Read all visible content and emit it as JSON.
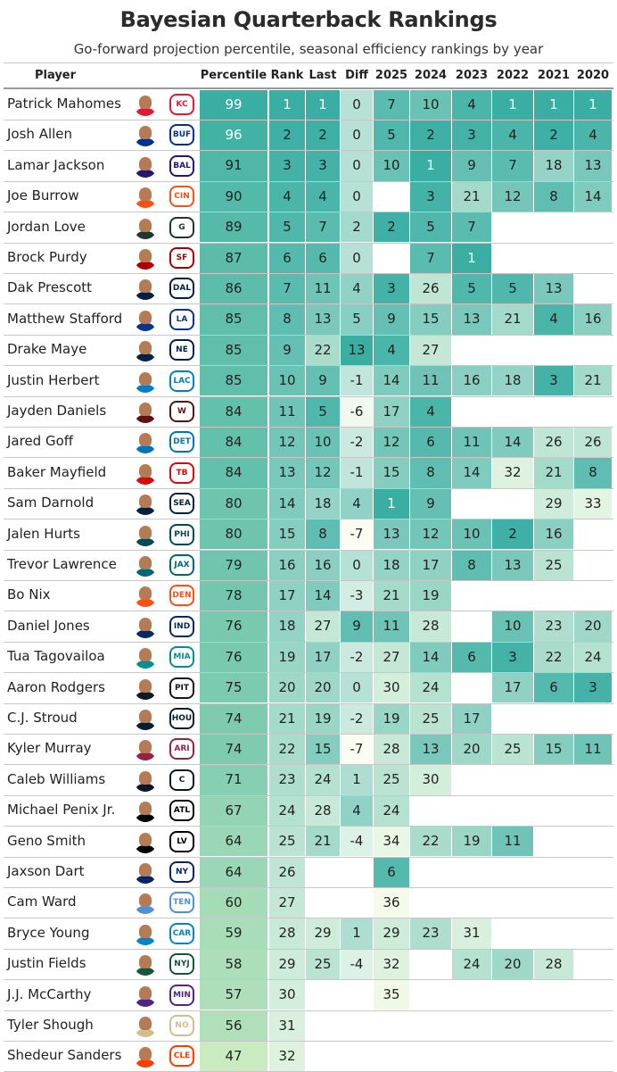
{
  "title": "Bayesian Quarterback Rankings",
  "subtitle": "Go-forward projection percentile, seasonal efficiency rankings by year",
  "chart_data": {
    "type": "table",
    "columns": [
      "Player",
      "Percentile",
      "Rank",
      "Last",
      "Diff",
      "2025",
      "2024",
      "2023",
      "2022",
      "2021",
      "2020"
    ],
    "rows": [
      {
        "player": "Patrick Mahomes",
        "team_color": "#E31837",
        "logo_text": "KC",
        "percentile": 99,
        "rank": 1,
        "last": 1,
        "diff": 0,
        "y2025": 7,
        "y2024": 10,
        "y2023": 4,
        "y2022": 1,
        "y2021": 1,
        "y2020": 1
      },
      {
        "player": "Josh Allen",
        "team_color": "#00338D",
        "logo_text": "BUF",
        "percentile": 96,
        "rank": 2,
        "last": 2,
        "diff": 0,
        "y2025": 5,
        "y2024": 2,
        "y2023": 3,
        "y2022": 4,
        "y2021": 2,
        "y2020": 4
      },
      {
        "player": "Lamar Jackson",
        "team_color": "#241773",
        "logo_text": "BAL",
        "percentile": 91,
        "rank": 3,
        "last": 3,
        "diff": 0,
        "y2025": 10,
        "y2024": 1,
        "y2023": 9,
        "y2022": 7,
        "y2021": 18,
        "y2020": 13
      },
      {
        "player": "Joe Burrow",
        "team_color": "#FB4F14",
        "logo_text": "CIN",
        "percentile": 90,
        "rank": 4,
        "last": 4,
        "diff": 0,
        "y2025": null,
        "y2024": 3,
        "y2023": 21,
        "y2022": 12,
        "y2021": 8,
        "y2020": 14
      },
      {
        "player": "Jordan Love",
        "team_color": "#203731",
        "logo_text": "G",
        "percentile": 89,
        "rank": 5,
        "last": 7,
        "diff": 2,
        "y2025": 2,
        "y2024": 5,
        "y2023": 7,
        "y2022": null,
        "y2021": null,
        "y2020": null
      },
      {
        "player": "Brock Purdy",
        "team_color": "#AA0000",
        "logo_text": "SF",
        "percentile": 87,
        "rank": 6,
        "last": 6,
        "diff": 0,
        "y2025": null,
        "y2024": 7,
        "y2023": 1,
        "y2022": null,
        "y2021": null,
        "y2020": null
      },
      {
        "player": "Dak Prescott",
        "team_color": "#041E42",
        "logo_text": "DAL",
        "percentile": 86,
        "rank": 7,
        "last": 11,
        "diff": 4,
        "y2025": 3,
        "y2024": 26,
        "y2023": 5,
        "y2022": 5,
        "y2021": 13,
        "y2020": null
      },
      {
        "player": "Matthew Stafford",
        "team_color": "#003594",
        "logo_text": "LA",
        "percentile": 85,
        "rank": 8,
        "last": 13,
        "diff": 5,
        "y2025": 9,
        "y2024": 15,
        "y2023": 13,
        "y2022": 21,
        "y2021": 4,
        "y2020": 16
      },
      {
        "player": "Drake Maye",
        "team_color": "#002244",
        "logo_text": "NE",
        "percentile": 85,
        "rank": 9,
        "last": 22,
        "diff": 13,
        "y2025": 4,
        "y2024": 27,
        "y2023": null,
        "y2022": null,
        "y2021": null,
        "y2020": null
      },
      {
        "player": "Justin Herbert",
        "team_color": "#0080C6",
        "logo_text": "LAC",
        "percentile": 85,
        "rank": 10,
        "last": 9,
        "diff": -1,
        "y2025": 14,
        "y2024": 11,
        "y2023": 16,
        "y2022": 18,
        "y2021": 3,
        "y2020": 21
      },
      {
        "player": "Jayden Daniels",
        "team_color": "#5A1414",
        "logo_text": "W",
        "percentile": 84,
        "rank": 11,
        "last": 5,
        "diff": -6,
        "y2025": 17,
        "y2024": 4,
        "y2023": null,
        "y2022": null,
        "y2021": null,
        "y2020": null
      },
      {
        "player": "Jared Goff",
        "team_color": "#0076B6",
        "logo_text": "DET",
        "percentile": 84,
        "rank": 12,
        "last": 10,
        "diff": -2,
        "y2025": 12,
        "y2024": 6,
        "y2023": 11,
        "y2022": 14,
        "y2021": 26,
        "y2020": 26
      },
      {
        "player": "Baker Mayfield",
        "team_color": "#D50A0A",
        "logo_text": "TB",
        "percentile": 84,
        "rank": 13,
        "last": 12,
        "diff": -1,
        "y2025": 15,
        "y2024": 8,
        "y2023": 14,
        "y2022": 32,
        "y2021": 21,
        "y2020": 8
      },
      {
        "player": "Sam Darnold",
        "team_color": "#002244",
        "logo_text": "SEA",
        "percentile": 80,
        "rank": 14,
        "last": 18,
        "diff": 4,
        "y2025": 1,
        "y2024": 9,
        "y2023": null,
        "y2022": null,
        "y2021": 29,
        "y2020": 33
      },
      {
        "player": "Jalen Hurts",
        "team_color": "#004C54",
        "logo_text": "PHI",
        "percentile": 80,
        "rank": 15,
        "last": 8,
        "diff": -7,
        "y2025": 13,
        "y2024": 12,
        "y2023": 10,
        "y2022": 2,
        "y2021": 16,
        "y2020": null
      },
      {
        "player": "Trevor Lawrence",
        "team_color": "#006778",
        "logo_text": "JAX",
        "percentile": 79,
        "rank": 16,
        "last": 16,
        "diff": 0,
        "y2025": 18,
        "y2024": 17,
        "y2023": 8,
        "y2022": 13,
        "y2021": 25,
        "y2020": null
      },
      {
        "player": "Bo Nix",
        "team_color": "#FB4F14",
        "logo_text": "DEN",
        "percentile": 78,
        "rank": 17,
        "last": 14,
        "diff": -3,
        "y2025": 21,
        "y2024": 19,
        "y2023": null,
        "y2022": null,
        "y2021": null,
        "y2020": null
      },
      {
        "player": "Daniel Jones",
        "team_color": "#002C5F",
        "logo_text": "IND",
        "percentile": 76,
        "rank": 18,
        "last": 27,
        "diff": 9,
        "y2025": 11,
        "y2024": 28,
        "y2023": null,
        "y2022": 10,
        "y2021": 23,
        "y2020": 20
      },
      {
        "player": "Tua Tagovailoa",
        "team_color": "#008E97",
        "logo_text": "MIA",
        "percentile": 76,
        "rank": 19,
        "last": 17,
        "diff": -2,
        "y2025": 27,
        "y2024": 14,
        "y2023": 6,
        "y2022": 3,
        "y2021": 22,
        "y2020": 24
      },
      {
        "player": "Aaron Rodgers",
        "team_color": "#101820",
        "logo_text": "PIT",
        "percentile": 75,
        "rank": 20,
        "last": 20,
        "diff": 0,
        "y2025": 30,
        "y2024": 24,
        "y2023": null,
        "y2022": 17,
        "y2021": 6,
        "y2020": 3
      },
      {
        "player": "C.J. Stroud",
        "team_color": "#03202F",
        "logo_text": "HOU",
        "percentile": 74,
        "rank": 21,
        "last": 19,
        "diff": -2,
        "y2025": 19,
        "y2024": 25,
        "y2023": 17,
        "y2022": null,
        "y2021": null,
        "y2020": null
      },
      {
        "player": "Kyler Murray",
        "team_color": "#97233F",
        "logo_text": "ARI",
        "percentile": 74,
        "rank": 22,
        "last": 15,
        "diff": -7,
        "y2025": 28,
        "y2024": 13,
        "y2023": 20,
        "y2022": 25,
        "y2021": 15,
        "y2020": 11
      },
      {
        "player": "Caleb Williams",
        "team_color": "#0B162A",
        "logo_text": "C",
        "percentile": 71,
        "rank": 23,
        "last": 24,
        "diff": 1,
        "y2025": 25,
        "y2024": 30,
        "y2023": null,
        "y2022": null,
        "y2021": null,
        "y2020": null
      },
      {
        "player": "Michael Penix Jr.",
        "team_color": "#000000",
        "logo_text": "ATL",
        "percentile": 67,
        "rank": 24,
        "last": 28,
        "diff": 4,
        "y2025": 24,
        "y2024": null,
        "y2023": null,
        "y2022": null,
        "y2021": null,
        "y2020": null
      },
      {
        "player": "Geno Smith",
        "team_color": "#000000",
        "logo_text": "LV",
        "percentile": 64,
        "rank": 25,
        "last": 21,
        "diff": -4,
        "y2025": 34,
        "y2024": 22,
        "y2023": 19,
        "y2022": 11,
        "y2021": null,
        "y2020": null
      },
      {
        "player": "Jaxson Dart",
        "team_color": "#0B2265",
        "logo_text": "NY",
        "percentile": 64,
        "rank": 26,
        "last": null,
        "diff": null,
        "y2025": 6,
        "y2024": null,
        "y2023": null,
        "y2022": null,
        "y2021": null,
        "y2020": null
      },
      {
        "player": "Cam Ward",
        "team_color": "#4B92DB",
        "logo_text": "TEN",
        "percentile": 60,
        "rank": 27,
        "last": null,
        "diff": null,
        "y2025": 36,
        "y2024": null,
        "y2023": null,
        "y2022": null,
        "y2021": null,
        "y2020": null
      },
      {
        "player": "Bryce Young",
        "team_color": "#0085CA",
        "logo_text": "CAR",
        "percentile": 59,
        "rank": 28,
        "last": 29,
        "diff": 1,
        "y2025": 29,
        "y2024": 23,
        "y2023": 31,
        "y2022": null,
        "y2021": null,
        "y2020": null
      },
      {
        "player": "Justin Fields",
        "team_color": "#125740",
        "logo_text": "NYJ",
        "percentile": 58,
        "rank": 29,
        "last": 25,
        "diff": -4,
        "y2025": 32,
        "y2024": null,
        "y2023": 24,
        "y2022": 20,
        "y2021": 28,
        "y2020": null
      },
      {
        "player": "J.J. McCarthy",
        "team_color": "#4F2683",
        "logo_text": "MIN",
        "percentile": 57,
        "rank": 30,
        "last": null,
        "diff": null,
        "y2025": 35,
        "y2024": null,
        "y2023": null,
        "y2022": null,
        "y2021": null,
        "y2020": null
      },
      {
        "player": "Tyler Shough",
        "team_color": "#D3BC8D",
        "logo_text": "NO",
        "percentile": 56,
        "rank": 31,
        "last": null,
        "diff": null,
        "y2025": null,
        "y2024": null,
        "y2023": null,
        "y2022": null,
        "y2021": null,
        "y2020": null
      },
      {
        "player": "Shedeur Sanders",
        "team_color": "#FF3C00",
        "logo_text": "CLE",
        "percentile": 47,
        "rank": 32,
        "last": null,
        "diff": null,
        "y2025": null,
        "y2024": null,
        "y2023": null,
        "y2022": null,
        "y2021": null,
        "y2020": null
      }
    ]
  },
  "colors": {
    "high": "#3aaea3",
    "low": "#f4fbe8",
    "percentile_low": "#c9ebbf",
    "grid": "#c8c8c8"
  }
}
